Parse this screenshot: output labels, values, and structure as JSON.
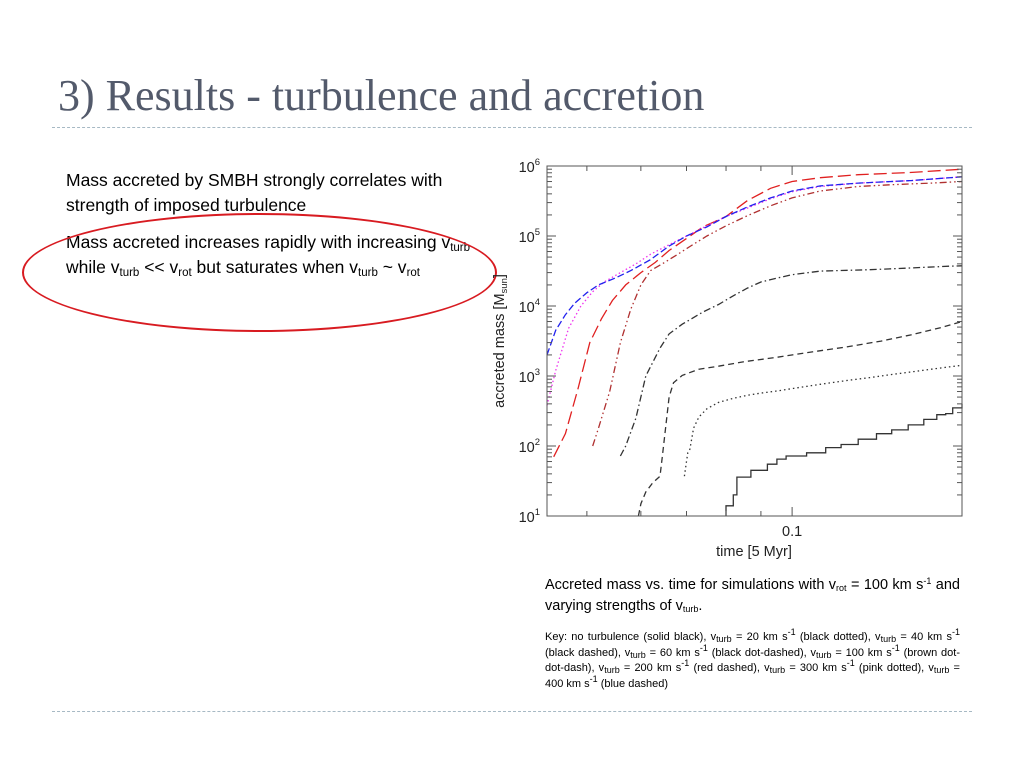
{
  "slide": {
    "title": "3) Results - turbulence and accretion",
    "bullet1": "Mass accreted by SMBH strongly correlates with strength of imposed turbulence",
    "bullet2": {
      "t1": "Mass accreted increases rapidly with increasing v",
      "s1": "turb",
      "t2": " while v",
      "s2": "turb",
      "t3": " << v",
      "s3": "rot",
      "t4": " but saturates when v",
      "s4": "turb",
      "t5": " ~ v",
      "s5": "rot"
    },
    "caption": {
      "t1": "Accreted mass vs. time for simulations with v",
      "s1": "rot",
      "t2": " = 100 km s",
      "p1": "-1",
      "t3": " and varying strengths of v",
      "s2": "turb",
      "t4": "."
    },
    "key": {
      "t1": "Key: no turbulence (solid black), v",
      "s1": "turb",
      "t2": " = 20 km s",
      "p1": "-1",
      "t3": " (black dotted), v",
      "s2": "turb",
      "t4": " = 40 km s",
      "p2": "-1",
      "t5": " (black dashed), v",
      "s3": "turb",
      "t6": " = 60 km s",
      "p3": "-1",
      "t7": " (black dot-dashed), v",
      "s4": "turb",
      "t8": " = 100 km s",
      "p4": "-1",
      "t9": " (brown dot-dot-dash), v",
      "s5": "turb",
      "t10": " = 200 km s",
      "p5": "-1",
      "t11": " (red dashed), v",
      "s6": "turb",
      "t12": " = 300 km s",
      "p6": "-1",
      "t13": " (pink dotted), v",
      "s7": "turb",
      "t14": " = 400 km s",
      "p7": "-1",
      "t15": " (blue dashed)"
    },
    "colors": {
      "title": "#535a6b",
      "highlight_ellipse": "#d81b21",
      "rule": "#a7b9c4"
    }
  },
  "chart_data": {
    "type": "line",
    "xscale": "log",
    "yscale": "log",
    "xlabel": "time [5 Myr]",
    "ylabel": "accreted mass [M",
    "ylabel_sub": "sun",
    "ylabel_end": "]",
    "xlim": [
      0.0437,
      0.1775
    ],
    "ylim": [
      10,
      1000000
    ],
    "x_ticks": [
      {
        "value": 0.1,
        "label": "0.1"
      }
    ],
    "y_ticks": [
      {
        "value": 10,
        "base": "10",
        "exp": "1"
      },
      {
        "value": 100,
        "base": "10",
        "exp": "2"
      },
      {
        "value": 1000,
        "base": "10",
        "exp": "3"
      },
      {
        "value": 10000,
        "base": "10",
        "exp": "4"
      },
      {
        "value": 100000,
        "base": "10",
        "exp": "5"
      },
      {
        "value": 1000000,
        "base": "10",
        "exp": "6"
      }
    ],
    "grid": false,
    "legend": "none",
    "series": [
      {
        "id": "v0",
        "color": "#333333",
        "dash": "",
        "step": true,
        "points": [
          [
            0.08,
            10
          ],
          [
            0.08,
            14
          ],
          [
            0.082,
            20
          ],
          [
            0.083,
            36
          ],
          [
            0.087,
            36
          ],
          [
            0.087,
            45
          ],
          [
            0.09,
            45
          ],
          [
            0.092,
            55
          ],
          [
            0.095,
            55
          ],
          [
            0.095,
            65
          ],
          [
            0.098,
            65
          ],
          [
            0.098,
            72
          ],
          [
            0.102,
            72
          ],
          [
            0.105,
            80
          ],
          [
            0.11,
            80
          ],
          [
            0.112,
            95
          ],
          [
            0.116,
            95
          ],
          [
            0.118,
            105
          ],
          [
            0.122,
            105
          ],
          [
            0.125,
            125
          ],
          [
            0.13,
            125
          ],
          [
            0.133,
            150
          ],
          [
            0.138,
            150
          ],
          [
            0.14,
            170
          ],
          [
            0.146,
            170
          ],
          [
            0.148,
            200
          ],
          [
            0.153,
            200
          ],
          [
            0.156,
            240
          ],
          [
            0.16,
            240
          ],
          [
            0.163,
            280
          ],
          [
            0.168,
            290
          ],
          [
            0.172,
            350
          ],
          [
            0.1775,
            400
          ]
        ]
      },
      {
        "id": "v20",
        "color": "#333333",
        "dash": "1.5,3",
        "points": [
          [
            0.0695,
            37
          ],
          [
            0.07,
            60
          ],
          [
            0.0703,
            80
          ],
          [
            0.0708,
            90
          ],
          [
            0.0717,
            180
          ],
          [
            0.073,
            260
          ],
          [
            0.075,
            340
          ],
          [
            0.078,
            420
          ],
          [
            0.082,
            480
          ],
          [
            0.086,
            530
          ],
          [
            0.09,
            570
          ],
          [
            0.095,
            610
          ],
          [
            0.1,
            660
          ],
          [
            0.11,
            760
          ],
          [
            0.12,
            860
          ],
          [
            0.13,
            950
          ],
          [
            0.14,
            1050
          ],
          [
            0.15,
            1150
          ],
          [
            0.16,
            1250
          ],
          [
            0.17,
            1350
          ],
          [
            0.1775,
            1420
          ]
        ]
      },
      {
        "id": "v40",
        "color": "#333333",
        "dash": "6,4",
        "points": [
          [
            0.0595,
            10
          ],
          [
            0.06,
            15
          ],
          [
            0.061,
            22
          ],
          [
            0.0625,
            30
          ],
          [
            0.064,
            37
          ],
          [
            0.0645,
            70
          ],
          [
            0.066,
            500
          ],
          [
            0.067,
            800
          ],
          [
            0.069,
            1020
          ],
          [
            0.073,
            1250
          ],
          [
            0.078,
            1380
          ],
          [
            0.085,
            1600
          ],
          [
            0.095,
            1850
          ],
          [
            0.105,
            2150
          ],
          [
            0.12,
            2600
          ],
          [
            0.135,
            3150
          ],
          [
            0.15,
            3900
          ],
          [
            0.165,
            4900
          ],
          [
            0.1775,
            6000
          ]
        ]
      },
      {
        "id": "v60",
        "color": "#333333",
        "dash": "7,3,1.5,3",
        "points": [
          [
            0.056,
            72
          ],
          [
            0.057,
            100
          ],
          [
            0.059,
            250
          ],
          [
            0.061,
            1000
          ],
          [
            0.064,
            2500
          ],
          [
            0.066,
            4000
          ],
          [
            0.069,
            5500
          ],
          [
            0.074,
            8200
          ],
          [
            0.078,
            10500
          ],
          [
            0.082,
            14000
          ],
          [
            0.086,
            18000
          ],
          [
            0.09,
            22000
          ],
          [
            0.095,
            25000
          ],
          [
            0.1,
            28000
          ],
          [
            0.11,
            31500
          ],
          [
            0.13,
            33000
          ],
          [
            0.15,
            35000
          ],
          [
            0.17,
            37000
          ],
          [
            0.1775,
            37500
          ]
        ]
      },
      {
        "id": "v100",
        "color": "#b03030",
        "dash": "7,3,1.5,3,1.5,3",
        "points": [
          [
            0.051,
            100
          ],
          [
            0.052,
            180
          ],
          [
            0.054,
            600
          ],
          [
            0.056,
            3000
          ],
          [
            0.058,
            9000
          ],
          [
            0.06,
            20000
          ],
          [
            0.062,
            32000
          ],
          [
            0.065,
            42000
          ],
          [
            0.068,
            55000
          ],
          [
            0.071,
            72000
          ],
          [
            0.075,
            100000
          ],
          [
            0.08,
            140000
          ],
          [
            0.086,
            195000
          ],
          [
            0.093,
            270000
          ],
          [
            0.1,
            350000
          ],
          [
            0.11,
            440000
          ],
          [
            0.125,
            510000
          ],
          [
            0.14,
            540000
          ],
          [
            0.16,
            570000
          ],
          [
            0.1775,
            600000
          ]
        ]
      },
      {
        "id": "v200",
        "color": "#e02020",
        "dash": "13,5",
        "points": [
          [
            0.0447,
            70
          ],
          [
            0.0465,
            150
          ],
          [
            0.0485,
            650
          ],
          [
            0.0505,
            3000
          ],
          [
            0.0525,
            6500
          ],
          [
            0.0545,
            12000
          ],
          [
            0.057,
            20000
          ],
          [
            0.06,
            30000
          ],
          [
            0.063,
            42000
          ],
          [
            0.066,
            62000
          ],
          [
            0.07,
            92000
          ],
          [
            0.074,
            135000
          ],
          [
            0.08,
            190000
          ],
          [
            0.086,
            320000
          ],
          [
            0.093,
            480000
          ],
          [
            0.1,
            600000
          ],
          [
            0.11,
            680000
          ],
          [
            0.125,
            750000
          ],
          [
            0.15,
            810000
          ],
          [
            0.1775,
            900000
          ]
        ]
      },
      {
        "id": "v300",
        "color": "#ee33ee",
        "dash": "1.5,2.5",
        "points": [
          [
            0.0437,
            380
          ],
          [
            0.045,
            1200
          ],
          [
            0.047,
            4800
          ],
          [
            0.049,
            10000
          ],
          [
            0.051,
            16000
          ],
          [
            0.053,
            22000
          ],
          [
            0.056,
            30000
          ],
          [
            0.059,
            40000
          ],
          [
            0.062,
            55000
          ],
          [
            0.066,
            75000
          ],
          [
            0.07,
            100000
          ],
          [
            0.075,
            140000
          ],
          [
            0.08,
            190000
          ],
          [
            0.086,
            250000
          ],
          [
            0.093,
            340000
          ],
          [
            0.1,
            430000
          ],
          [
            0.11,
            510000
          ],
          [
            0.125,
            570000
          ],
          [
            0.15,
            620000
          ],
          [
            0.1775,
            700000
          ]
        ]
      },
      {
        "id": "v400",
        "color": "#2222ee",
        "dash": "7,3",
        "points": [
          [
            0.0437,
            2000
          ],
          [
            0.045,
            4500
          ],
          [
            0.0465,
            7500
          ],
          [
            0.048,
            11000
          ],
          [
            0.05,
            15500
          ],
          [
            0.052,
            20000
          ],
          [
            0.055,
            25000
          ],
          [
            0.058,
            32000
          ],
          [
            0.062,
            46000
          ],
          [
            0.066,
            72000
          ],
          [
            0.07,
            100000
          ],
          [
            0.075,
            135000
          ],
          [
            0.08,
            190000
          ],
          [
            0.086,
            260000
          ],
          [
            0.093,
            350000
          ],
          [
            0.1,
            440000
          ],
          [
            0.11,
            520000
          ],
          [
            0.125,
            570000
          ],
          [
            0.15,
            620000
          ],
          [
            0.1775,
            700000
          ]
        ]
      }
    ]
  }
}
